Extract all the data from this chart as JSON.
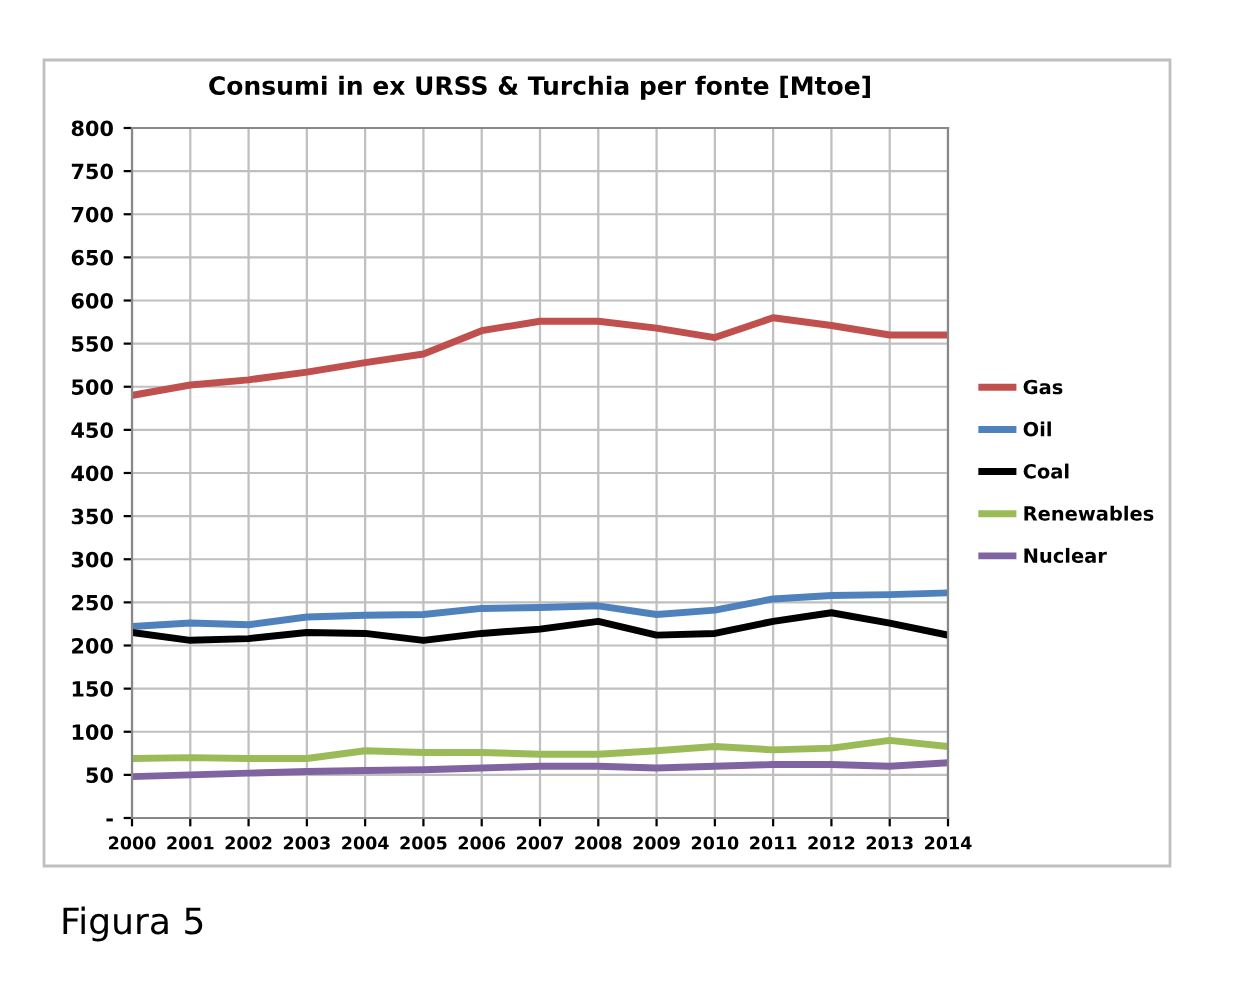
{
  "chart_data": {
    "type": "line",
    "title": "Consumi in ex URSS & Turchia per fonte [Mtoe]",
    "categories": [
      "2000",
      "2001",
      "2002",
      "2003",
      "2004",
      "2005",
      "2006",
      "2007",
      "2008",
      "2009",
      "2010",
      "2011",
      "2012",
      "2013",
      "2014"
    ],
    "series": [
      {
        "name": "Gas",
        "color": "#c0504d",
        "values": [
          490,
          502,
          508,
          517,
          528,
          538,
          565,
          576,
          576,
          568,
          557,
          580,
          571,
          560,
          560
        ]
      },
      {
        "name": "Oil",
        "color": "#4f81bd",
        "values": [
          222,
          226,
          224,
          233,
          235,
          236,
          243,
          244,
          246,
          236,
          241,
          254,
          258,
          259,
          261
        ]
      },
      {
        "name": "Coal",
        "color": "#000000",
        "values": [
          215,
          206,
          208,
          215,
          214,
          206,
          214,
          219,
          228,
          212,
          214,
          228,
          238,
          226,
          212
        ]
      },
      {
        "name": "Renewables",
        "color": "#9bbb59",
        "values": [
          69,
          70,
          69,
          69,
          78,
          76,
          76,
          74,
          74,
          78,
          83,
          79,
          81,
          90,
          83
        ]
      },
      {
        "name": "Nuclear",
        "color": "#8064a2",
        "values": [
          48,
          50,
          52,
          54,
          55,
          56,
          58,
          60,
          60,
          58,
          60,
          62,
          62,
          60,
          64
        ]
      }
    ],
    "ylim": [
      0,
      800
    ],
    "yticks": [
      {
        "value": 0,
        "label": "-"
      },
      50,
      100,
      150,
      200,
      250,
      300,
      350,
      400,
      450,
      500,
      550,
      600,
      650,
      700,
      750,
      800
    ],
    "grid": true,
    "legend": "right",
    "marker": "none",
    "line_style": "solid",
    "annotations": [
      "Figura 5"
    ]
  }
}
